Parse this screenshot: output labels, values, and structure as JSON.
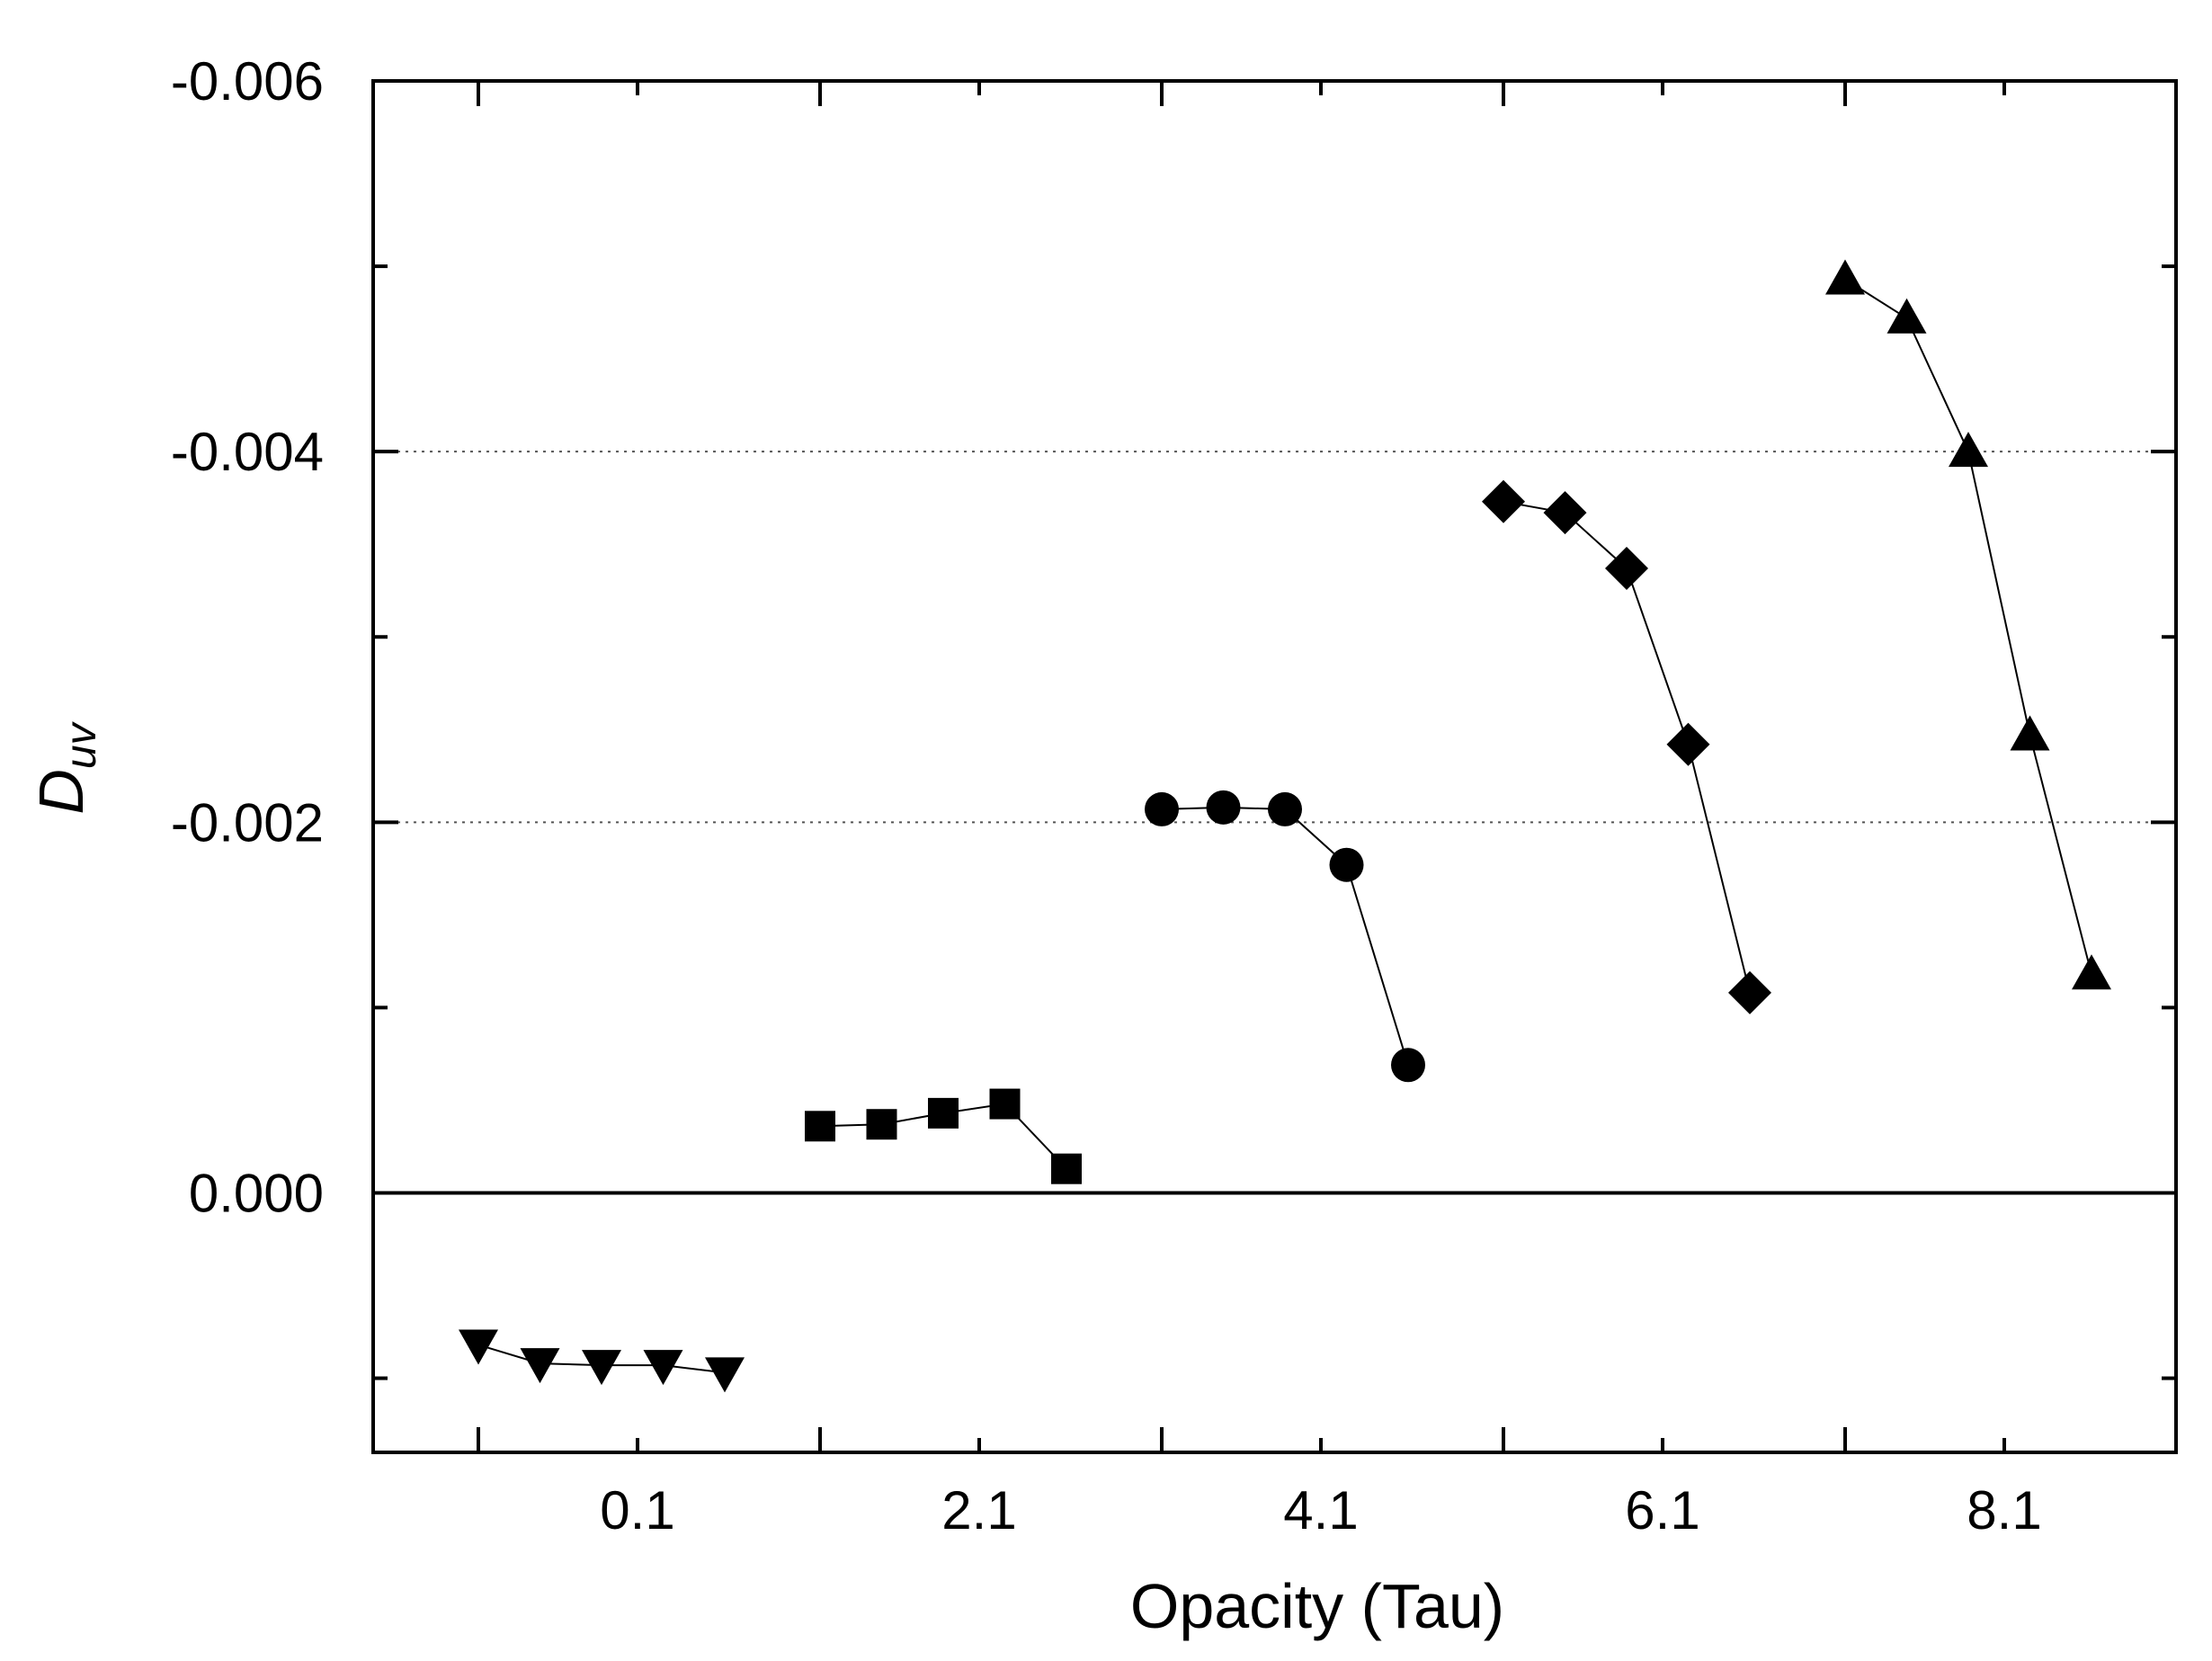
{
  "chart_data": {
    "type": "scatter",
    "title": "",
    "xlabel": "Opacity (Tau)",
    "ylabel": {
      "main": "D",
      "sub": "uv"
    },
    "x_tick_labels": [
      "0.1",
      "2.1",
      "4.1",
      "6.1",
      "8.1"
    ],
    "y_tick_labels": [
      "-0.006",
      "-0.004",
      "-0.002",
      "0.000"
    ],
    "y_tick_values": [
      -0.006,
      -0.004,
      -0.002,
      0.0
    ],
    "y_range_top": -0.006,
    "y_range_bottom": 0.0014,
    "y_axis_inverted": true,
    "x_groups": 5,
    "points_per_group": 5,
    "gridlines": [
      {
        "value": -0.004,
        "style": "dotted"
      },
      {
        "value": -0.002,
        "style": "dotted"
      },
      {
        "value": 0.0,
        "style": "solid"
      }
    ],
    "legend": "none",
    "series": [
      {
        "group": 0,
        "marker": "triangle-down",
        "values": [
          0.00082,
          0.00092,
          0.00093,
          0.00093,
          0.00097
        ]
      },
      {
        "group": 1,
        "marker": "square",
        "values": [
          -0.00036,
          -0.00037,
          -0.00043,
          -0.00048,
          -0.00013
        ]
      },
      {
        "group": 2,
        "marker": "circle",
        "values": [
          -0.00207,
          -0.00208,
          -0.00207,
          -0.00177,
          -0.00069
        ]
      },
      {
        "group": 3,
        "marker": "diamond",
        "values": [
          -0.00373,
          -0.00367,
          -0.00337,
          -0.00242,
          -0.00108
        ]
      },
      {
        "group": 4,
        "marker": "triangle-up",
        "values": [
          -0.00493,
          -0.00472,
          -0.004,
          -0.00247,
          -0.00118
        ]
      }
    ]
  }
}
